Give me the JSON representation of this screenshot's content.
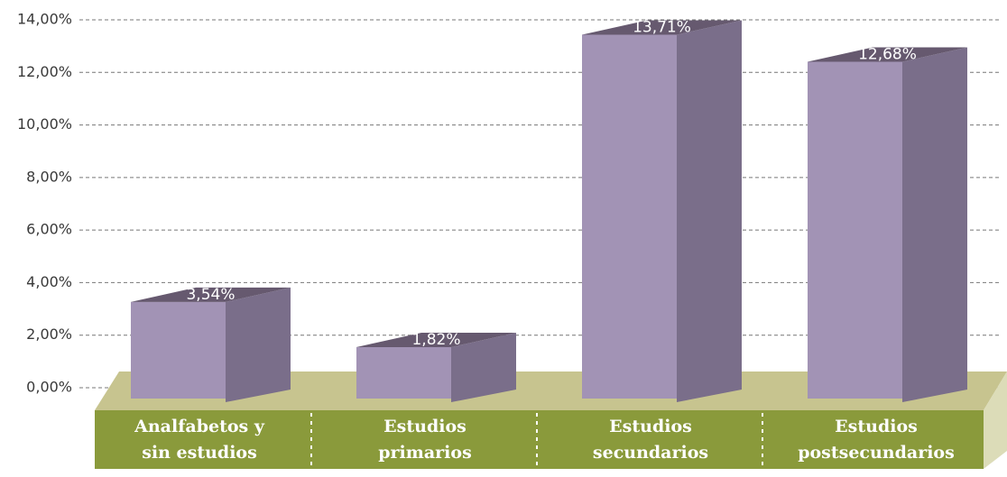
{
  "chart_data": {
    "type": "bar3d",
    "categories": [
      [
        "Analfabetos y",
        "sin estudios"
      ],
      [
        "Estudios",
        "primarios"
      ],
      [
        "Estudios",
        "secundarios"
      ],
      [
        "Estudios",
        "postsecundarios"
      ]
    ],
    "values": [
      3.54,
      1.82,
      13.71,
      12.68
    ],
    "value_labels": [
      "3,54%",
      "1,82%",
      "13,71%",
      "12,68%"
    ],
    "ylim": [
      0,
      14
    ],
    "yticks": [
      {
        "value": 0,
        "label": "0,00%"
      },
      {
        "value": 2,
        "label": "2,00%"
      },
      {
        "value": 4,
        "label": "4,00%"
      },
      {
        "value": 6,
        "label": "6,00%"
      },
      {
        "value": 8,
        "label": "8,00%"
      },
      {
        "value": 10,
        "label": "10,00%"
      },
      {
        "value": 12,
        "label": "12,00%"
      },
      {
        "value": 14,
        "label": "14,00%"
      }
    ],
    "grid": true,
    "color": "#a293b5"
  }
}
